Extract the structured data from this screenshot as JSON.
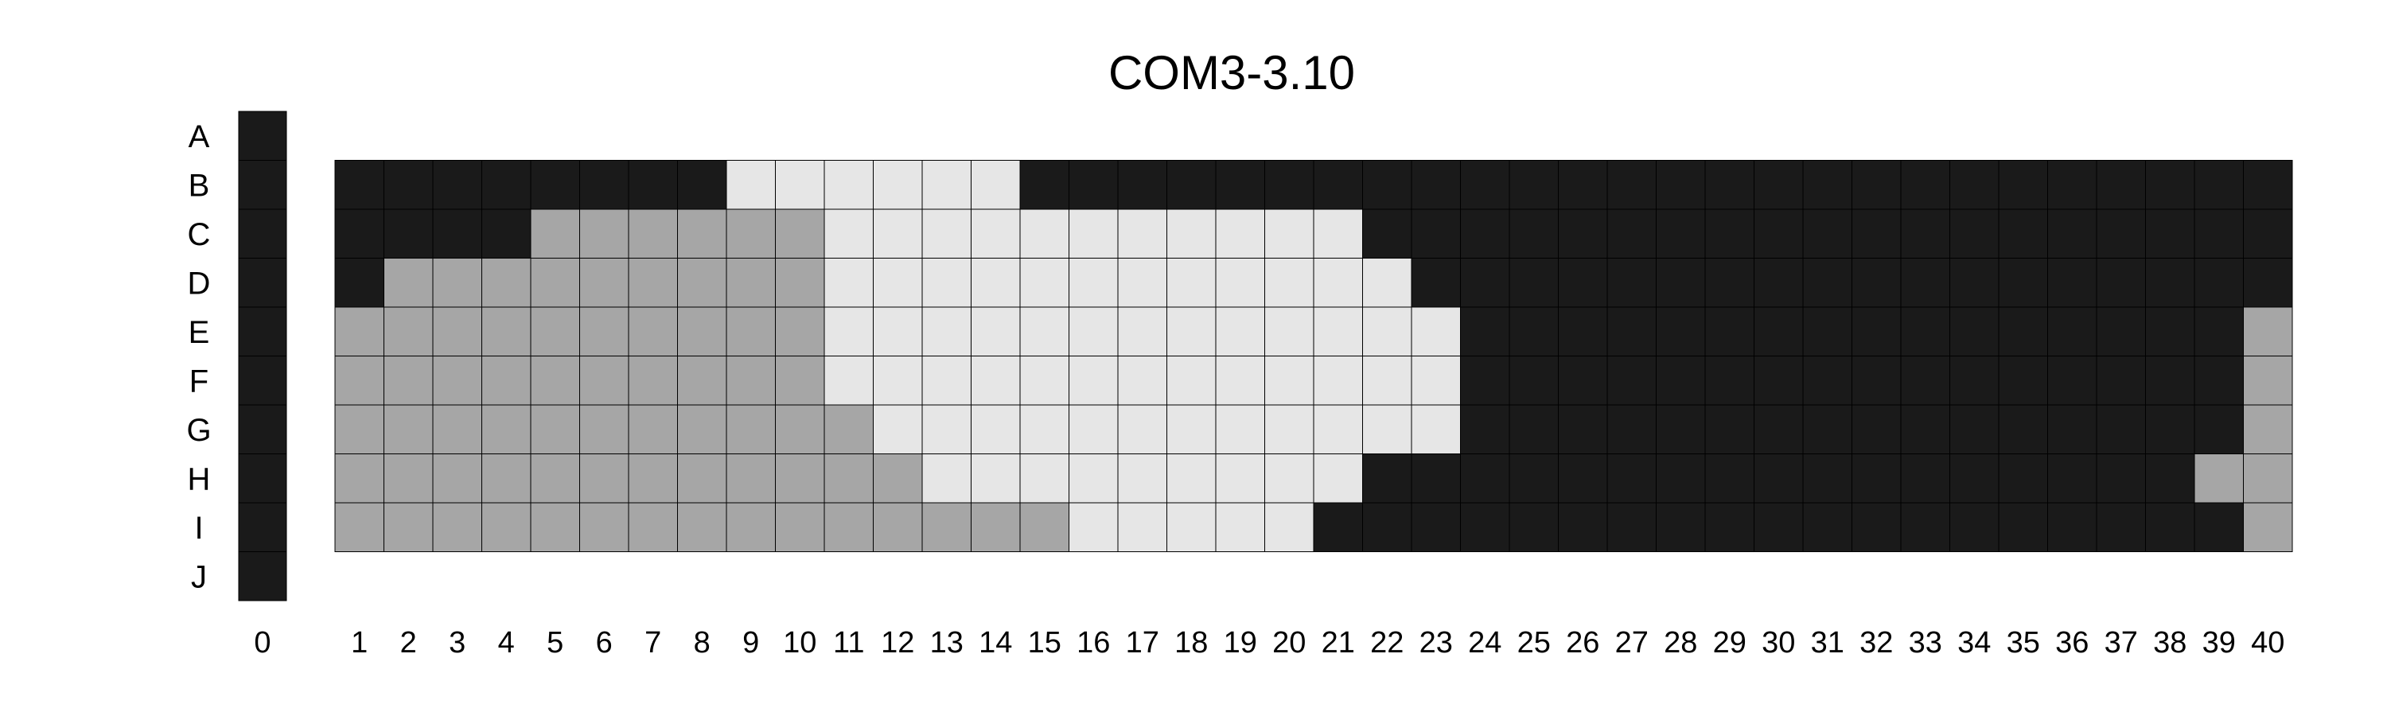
{
  "chart_data": {
    "type": "heatmap",
    "title": "COM3-3.10",
    "row_labels": [
      "A",
      "B",
      "C",
      "D",
      "E",
      "F",
      "G",
      "H",
      "I",
      "J"
    ],
    "column_zero": {
      "label": "0",
      "cells": [
        "D",
        "D",
        "D",
        "D",
        "D",
        "D",
        "D",
        "D",
        "D",
        "D"
      ]
    },
    "column_labels": [
      "1",
      "2",
      "3",
      "4",
      "5",
      "6",
      "7",
      "8",
      "9",
      "10",
      "11",
      "12",
      "13",
      "14",
      "15",
      "16",
      "17",
      "18",
      "19",
      "20",
      "21",
      "22",
      "23",
      "24",
      "25",
      "26",
      "27",
      "28",
      "29",
      "30",
      "31",
      "32",
      "33",
      "34",
      "35",
      "36",
      "37",
      "38",
      "39",
      "40"
    ],
    "grid_rows": [
      "B",
      "C",
      "D",
      "E",
      "F",
      "G",
      "H",
      "I"
    ],
    "state_colors": {
      "D": "#1a1a1a",
      "M": "#a6a6a6",
      "L": "#e6e6e6"
    },
    "cells": [
      "DDDDDDDDLLLLLLDDDDDDDDDDDDDDDDDDDDDDDDDD",
      "DDDDMMMMMMLLLLLLLLLLLDDDDDDDDDDDDDDDDDDD",
      "DMMMMMMMMMLLLLLLLLLLLLDDDDDDDDDDDDDDDDDD",
      "MMMMMMMMMMLLLLLLLLLLLLLDDDDDDDDDDDDDDDDM",
      "MMMMMMMMMMLLLLLLLLLLLLLDDDDDDDDDDDDDDDDM",
      "MMMMMMMMMMMLLLLLLLLLLLLDDDDDDDDDDDDDDDDM",
      "MMMMMMMMMMMMLLLLLLLLLDDDDDDDDDDDDDDDDDMM",
      "MMMMMMMMMMMMMMMLLLLLDDDDDDDDDDDDDDDDDDDM"
    ]
  }
}
